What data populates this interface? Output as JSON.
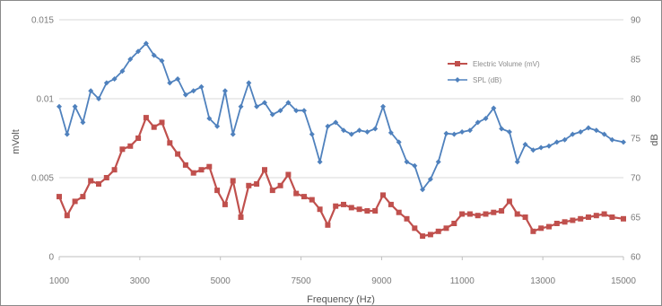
{
  "chart_data": {
    "type": "line",
    "xlabel": "Frequency (Hz)",
    "ylabel_left": "mVolt",
    "ylabel_right": "dB",
    "xlim": [
      1000,
      15000
    ],
    "x_ticks": [
      "1000",
      "3000",
      "5000",
      "7500",
      "9000",
      "11000",
      "13000",
      "15000"
    ],
    "ylim_left": [
      0,
      0.015
    ],
    "y_ticks_left": [
      "0",
      "0.005",
      "0.01",
      "0.015"
    ],
    "ylim_right": [
      60,
      90
    ],
    "y_ticks_right": [
      "60",
      "65",
      "70",
      "75",
      "80",
      "85",
      "90"
    ],
    "grid": "horizontal",
    "legend_position": "upper-right",
    "x": [
      1000,
      1196,
      1392,
      1588,
      1784,
      1980,
      2176,
      2372,
      2568,
      2764,
      2960,
      3156,
      3352,
      3548,
      3744,
      3940,
      4136,
      4332,
      4528,
      4724,
      4920,
      5116,
      5312,
      5508,
      5704,
      5900,
      6096,
      6292,
      6488,
      6684,
      6880,
      7076,
      7272,
      7468,
      7664,
      7860,
      8056,
      8252,
      8448,
      8644,
      8840,
      9036,
      9232,
      9428,
      9624,
      9820,
      10016,
      10212,
      10408,
      10604,
      10800,
      10996,
      11192,
      11388,
      11584,
      11780,
      11976,
      12172,
      12368,
      12564,
      12760,
      12956,
      13152,
      13348,
      13544,
      13740,
      13936,
      14132,
      14328,
      14524,
      14720,
      15000
    ],
    "series": [
      {
        "name": "Electric Volume (mV)",
        "axis": "left",
        "color": "#c0504d",
        "marker": "square",
        "values": [
          0.0038,
          0.0026,
          0.0035,
          0.0038,
          0.0048,
          0.0046,
          0.005,
          0.0055,
          0.0068,
          0.007,
          0.0075,
          0.0088,
          0.0082,
          0.0085,
          0.0072,
          0.0065,
          0.0058,
          0.0053,
          0.0055,
          0.0057,
          0.0042,
          0.0033,
          0.0048,
          0.0025,
          0.0045,
          0.0046,
          0.0055,
          0.0042,
          0.0045,
          0.0052,
          0.004,
          0.0038,
          0.0036,
          0.003,
          0.002,
          0.0032,
          0.0033,
          0.0031,
          0.003,
          0.0029,
          0.0029,
          0.0039,
          0.0033,
          0.0028,
          0.0024,
          0.0018,
          0.0013,
          0.0014,
          0.0016,
          0.0018,
          0.0021,
          0.0027,
          0.0027,
          0.0026,
          0.0027,
          0.0028,
          0.0029,
          0.0035,
          0.0027,
          0.0025,
          0.0016,
          0.0018,
          0.0019,
          0.0021,
          0.0022,
          0.0023,
          0.0024,
          0.0025,
          0.0026,
          0.0027,
          0.0025,
          0.0024
        ]
      },
      {
        "name": "SPL (dB)",
        "axis": "right",
        "color": "#4f81bd",
        "marker": "diamond",
        "values": [
          79,
          75.5,
          79,
          77,
          81,
          80,
          82,
          82.5,
          83.5,
          85,
          86,
          87,
          85.5,
          84.8,
          82,
          82.5,
          80.5,
          81,
          81.5,
          77.5,
          76.5,
          81,
          75.5,
          79,
          82,
          79,
          79.5,
          78,
          78.5,
          79.5,
          78.5,
          78.5,
          75.5,
          72,
          76.5,
          77,
          76,
          75.5,
          76,
          75.8,
          76.2,
          79,
          75.7,
          74.5,
          72,
          71.5,
          68.5,
          69.8,
          72,
          75.6,
          75.5,
          75.8,
          76,
          77,
          77.5,
          78.8,
          76.2,
          75.8,
          72,
          74.2,
          73.5,
          73.8,
          74,
          74.5,
          74.8,
          75.5,
          75.8,
          76.3,
          76,
          75.5,
          74.8,
          74.5
        ]
      }
    ]
  }
}
